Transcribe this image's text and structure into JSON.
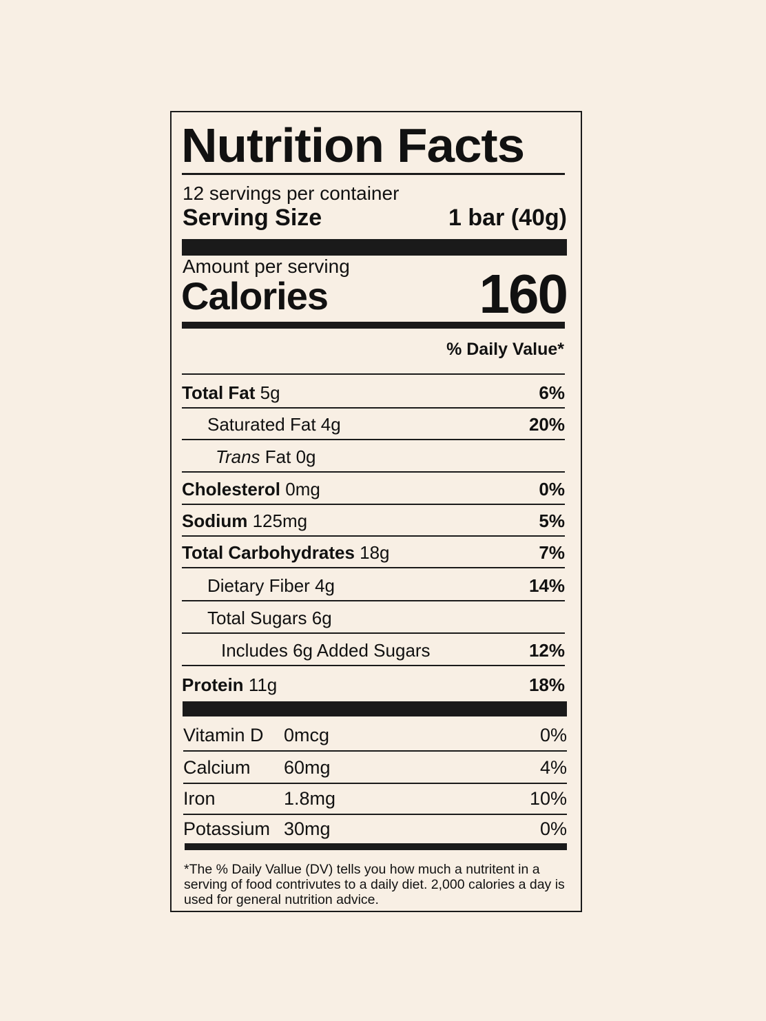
{
  "label": {
    "title": "Nutrition Facts",
    "servings_per_container": "12 servings per container",
    "serving_size_label": "Serving Size",
    "serving_size_value": "1 bar (40g)",
    "amount_per_serving": "Amount per serving",
    "calories_label": "Calories",
    "calories_value": "160",
    "daily_value_header": "% Daily Value*",
    "nutrients": [
      {
        "name": "Total Fat",
        "amount": "5g",
        "dv": "6%"
      },
      {
        "name": "Saturated Fat",
        "amount": "4g",
        "dv": "20%"
      },
      {
        "name_italic": "Trans",
        "name": "Fat",
        "amount": "0g",
        "dv": ""
      },
      {
        "name": "Cholesterol",
        "amount": "0mg",
        "dv": "0%"
      },
      {
        "name": "Sodium",
        "amount": "125mg",
        "dv": "5%"
      },
      {
        "name": "Total Carbohydrates",
        "amount": "18g",
        "dv": "7%"
      },
      {
        "name": "Dietary Fiber",
        "amount": "4g",
        "dv": "14%"
      },
      {
        "name": "Total Sugars",
        "amount": "6g",
        "dv": ""
      },
      {
        "name": "Includes 6g Added Sugars",
        "amount": "",
        "dv": "12%"
      },
      {
        "name": "Protein",
        "amount": "11g",
        "dv": "18%"
      }
    ],
    "vitamins": [
      {
        "name": "Vitamin D",
        "amount": "0mcg",
        "dv": "0%"
      },
      {
        "name": "Calcium",
        "amount": "60mg",
        "dv": "4%"
      },
      {
        "name": "Iron",
        "amount": "1.8mg",
        "dv": "10%"
      },
      {
        "name": "Potassium",
        "amount": "30mg",
        "dv": "0%"
      }
    ],
    "footnote": "*The % Daily Vallue (DV) tells you how much a nutritent in a serving of food contrivutes to a daily diet. 2,000 calories a day is used for general nutrition advice."
  }
}
